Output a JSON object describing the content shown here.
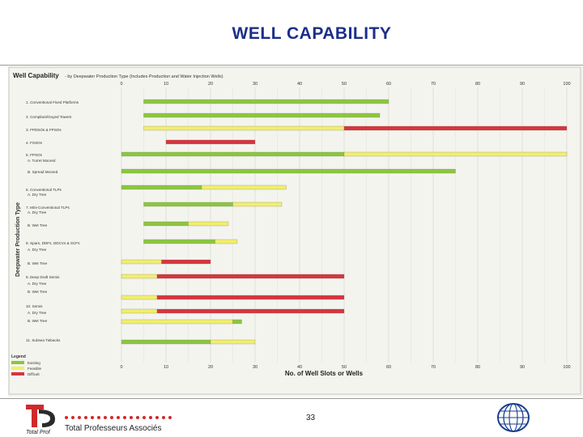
{
  "slide": {
    "title": "WELL CAPABILITY",
    "page_number": "33",
    "company": "Total Professeurs Associés",
    "logo_text": "Total Prof"
  },
  "figure": {
    "title": "Well Capability",
    "subtitle": "- by Deepwater Production Type (Includes Production and Water Injection Wells)",
    "y_axis_label": "Deepwater Production Type",
    "x_axis_label": "No. of Well Slots or Wells",
    "top_ticks": [
      "0",
      "10",
      "20",
      "30",
      "40",
      "50",
      "60",
      "70",
      "80",
      "90",
      "100"
    ],
    "bottom_ticks": [
      "0",
      "10",
      "20",
      "30",
      "40",
      "50",
      "60",
      "70",
      "80",
      "90",
      "100"
    ],
    "rows": [
      "1. Conventional Fixed Platforms",
      "2. Compliant/Guyed Towers",
      "3. FPDSOs & FPSOs",
      "4. FSSOs",
      "5. FPSOs",
      "A. Turret Moored",
      "B. Spread Moored",
      "6. Conventional TLPs",
      "A. Dry Tree",
      "7. Mini-Conventional TLPs",
      "A. Dry Tree",
      "B. Wet Tree",
      "8. Spars, DDFs, DDCVs & SCFs",
      "A. Dry Tree",
      "B. Wet Tree",
      "9. Deep Draft Semis",
      "A. Dry Tree",
      "B. Wet Tree",
      "10. Semis",
      "A. Dry Tree",
      "B. Wet Tree",
      "11. Subsea Tiebacks"
    ],
    "legend_title": "Legend",
    "legend": {
      "green": "Existing",
      "yellow": "Feasible",
      "red": "Difficult",
      "items": [
        "Existing",
        "Feasible",
        "Difficult"
      ]
    },
    "colors": {
      "green": "#8cc63e",
      "yellow": "#f1ee6e",
      "red": "#d8343f"
    }
  }
}
